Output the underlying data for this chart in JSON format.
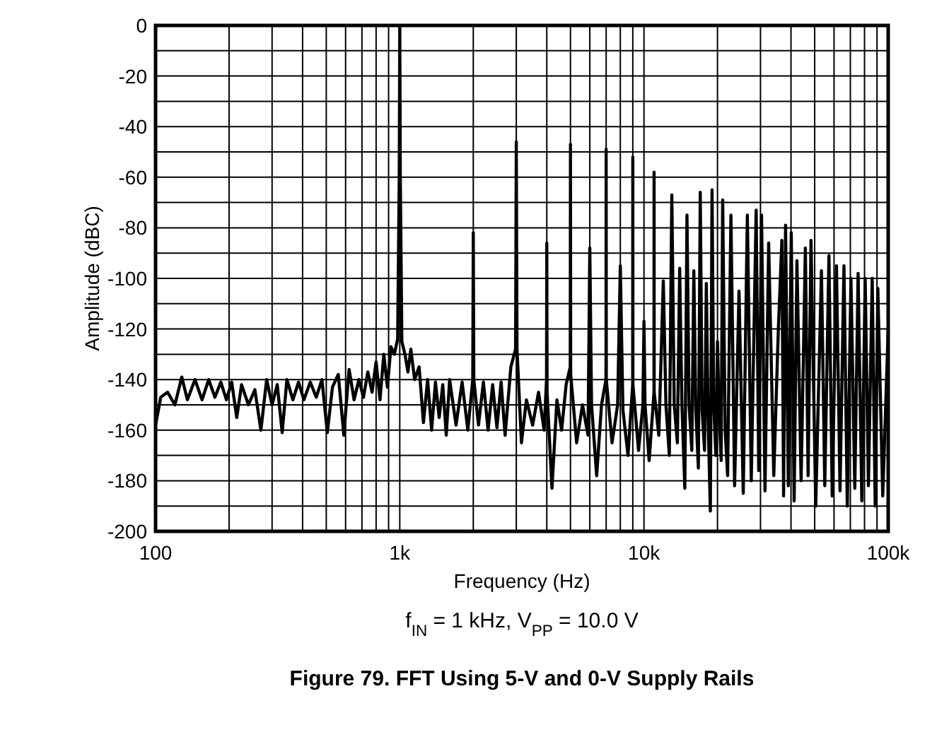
{
  "chart_data": {
    "type": "line",
    "title": "Figure 79. FFT Using 5-V and 0-V Supply Rails",
    "subtitle": "f$_{IN}$ = 1 kHz, V$_{PP}$ = 10.0 V",
    "xlabel": "Frequency (Hz)",
    "ylabel": "Amplitude (dBC)",
    "log": "x",
    "grid": true,
    "line_style": "solid",
    "marker": "none",
    "xlim": [
      100,
      100000
    ],
    "ylim": [
      -200,
      0
    ],
    "xticks": [
      {
        "value": 100,
        "label": "100"
      },
      {
        "value": 200,
        "label": null
      },
      {
        "value": 300,
        "label": null
      },
      {
        "value": 400,
        "label": null
      },
      {
        "value": 500,
        "label": null
      },
      {
        "value": 600,
        "label": null
      },
      {
        "value": 700,
        "label": null
      },
      {
        "value": 800,
        "label": null
      },
      {
        "value": 900,
        "label": null
      },
      {
        "value": 1000,
        "label": "1k"
      },
      {
        "value": 2000,
        "label": null
      },
      {
        "value": 3000,
        "label": null
      },
      {
        "value": 4000,
        "label": null
      },
      {
        "value": 5000,
        "label": null
      },
      {
        "value": 6000,
        "label": null
      },
      {
        "value": 7000,
        "label": null
      },
      {
        "value": 8000,
        "label": null
      },
      {
        "value": 9000,
        "label": null
      },
      {
        "value": 10000,
        "label": "10k"
      },
      {
        "value": 20000,
        "label": null
      },
      {
        "value": 30000,
        "label": null
      },
      {
        "value": 40000,
        "label": null
      },
      {
        "value": 50000,
        "label": null
      },
      {
        "value": 60000,
        "label": null
      },
      {
        "value": 70000,
        "label": null
      },
      {
        "value": 80000,
        "label": null
      },
      {
        "value": 90000,
        "label": null
      },
      {
        "value": 100000,
        "label": "100k"
      }
    ],
    "yticks": [
      0,
      {
        "value": -10,
        "label": null
      },
      -20,
      {
        "value": -30,
        "label": null
      },
      -40,
      {
        "value": -50,
        "label": null
      },
      -60,
      {
        "value": -70,
        "label": null
      },
      -80,
      {
        "value": -90,
        "label": null
      },
      -100,
      {
        "value": -110,
        "label": null
      },
      -120,
      {
        "value": -130,
        "label": null
      },
      -140,
      {
        "value": -150,
        "label": null
      },
      -160,
      {
        "value": -170,
        "label": null
      },
      -180,
      {
        "value": -190,
        "label": null
      },
      -200
    ],
    "series": [
      {
        "color": "#000000",
        "x": [
          100,
          105,
          112,
          120,
          128,
          135,
          145,
          155,
          165,
          175,
          185,
          195,
          205,
          215,
          225,
          240,
          255,
          270,
          285,
          300,
          315,
          330,
          345,
          365,
          385,
          405,
          430,
          455,
          480,
          505,
          530,
          560,
          590,
          620,
          650,
          680,
          710,
          740,
          770,
          800,
          830,
          860,
          890,
          920,
          950,
          980,
          995,
          1000,
          1005,
          1020,
          1050,
          1080,
          1110,
          1150,
          1200,
          1250,
          1300,
          1350,
          1400,
          1450,
          1500,
          1550,
          1600,
          1700,
          1800,
          1900,
          1990,
          2000,
          2010,
          2100,
          2200,
          2300,
          2400,
          2500,
          2600,
          2700,
          2850,
          2980,
          3000,
          3020,
          3150,
          3300,
          3500,
          3700,
          3900,
          3990,
          4000,
          4010,
          4200,
          4400,
          4600,
          4800,
          4990,
          5000,
          5010,
          5300,
          5600,
          5900,
          6000,
          6100,
          6400,
          6700,
          6990,
          7000,
          7010,
          7400,
          7800,
          8000,
          8200,
          8600,
          8990,
          9000,
          9010,
          9500,
          9900,
          10000,
          10100,
          10500,
          10990,
          11000,
          11010,
          11500,
          12000,
          12300,
          12700,
          13000,
          13300,
          13700,
          14000,
          14300,
          14700,
          15000,
          15300,
          15700,
          16000,
          16300,
          16700,
          17000,
          17300,
          17700,
          18000,
          18300,
          18700,
          19000,
          19300,
          19700,
          20000,
          20300,
          20700,
          21000,
          21500,
          22000,
          22700,
          23500,
          24500,
          25500,
          26500,
          27500,
          28800,
          29500,
          30300,
          31300,
          32400,
          34000,
          35500,
          36700,
          37300,
          38000,
          39000,
          40100,
          41200,
          42300,
          44000,
          45800,
          47000,
          48300,
          50500,
          53300,
          55000,
          57200,
          59000,
          61400,
          63500,
          65900,
          68000,
          70400,
          73000,
          75300,
          78000,
          80500,
          83000,
          86000,
          88500,
          90700,
          95000,
          100000
        ],
        "values": [
          -158,
          -147,
          -145,
          -150,
          -139,
          -148,
          -140,
          -148,
          -140,
          -147,
          -141,
          -148,
          -141,
          -155,
          -142,
          -150,
          -144,
          -160,
          -140,
          -150,
          -142,
          -161,
          -140,
          -148,
          -141,
          -148,
          -141,
          -147,
          -140,
          -161,
          -143,
          -138,
          -162,
          -136,
          -148,
          -140,
          -147,
          -137,
          -145,
          -133,
          -148,
          -130,
          -143,
          -127,
          -130,
          -124,
          -60,
          0,
          -60,
          -125,
          -130,
          -137,
          -128,
          -140,
          -135,
          -157,
          -140,
          -160,
          -141,
          -155,
          -142,
          -162,
          -140,
          -158,
          -141,
          -160,
          -140,
          -82,
          -140,
          -158,
          -141,
          -160,
          -142,
          -159,
          -141,
          -162,
          -135,
          -128,
          -46,
          -128,
          -165,
          -148,
          -158,
          -145,
          -160,
          -140,
          -86,
          -145,
          -183,
          -148,
          -160,
          -142,
          -135,
          -47,
          -138,
          -165,
          -150,
          -162,
          -88,
          -150,
          -178,
          -150,
          -140,
          -49,
          -140,
          -165,
          -150,
          -95,
          -152,
          -170,
          -142,
          -52,
          -142,
          -168,
          -150,
          -117,
          -150,
          -172,
          -145,
          -58,
          -145,
          -162,
          -101,
          -150,
          -170,
          -67,
          -150,
          -165,
          -96,
          -150,
          -183,
          -75,
          -150,
          -168,
          -97,
          -152,
          -175,
          -66,
          -152,
          -168,
          -102,
          -155,
          -192,
          -65,
          -150,
          -170,
          -125,
          -152,
          -172,
          -69,
          -160,
          -178,
          -75,
          -182,
          -105,
          -185,
          -75,
          -180,
          -73,
          -176,
          -75,
          -184,
          -86,
          -178,
          -120,
          -85,
          -186,
          -79,
          -182,
          -82,
          -188,
          -93,
          -180,
          -88,
          -178,
          -85,
          -190,
          -97,
          -182,
          -91,
          -186,
          -95,
          -184,
          -95,
          -190,
          -100,
          -183,
          -98,
          -188,
          -100,
          -182,
          -100,
          -190,
          -104,
          -186,
          -120
        ]
      }
    ]
  }
}
